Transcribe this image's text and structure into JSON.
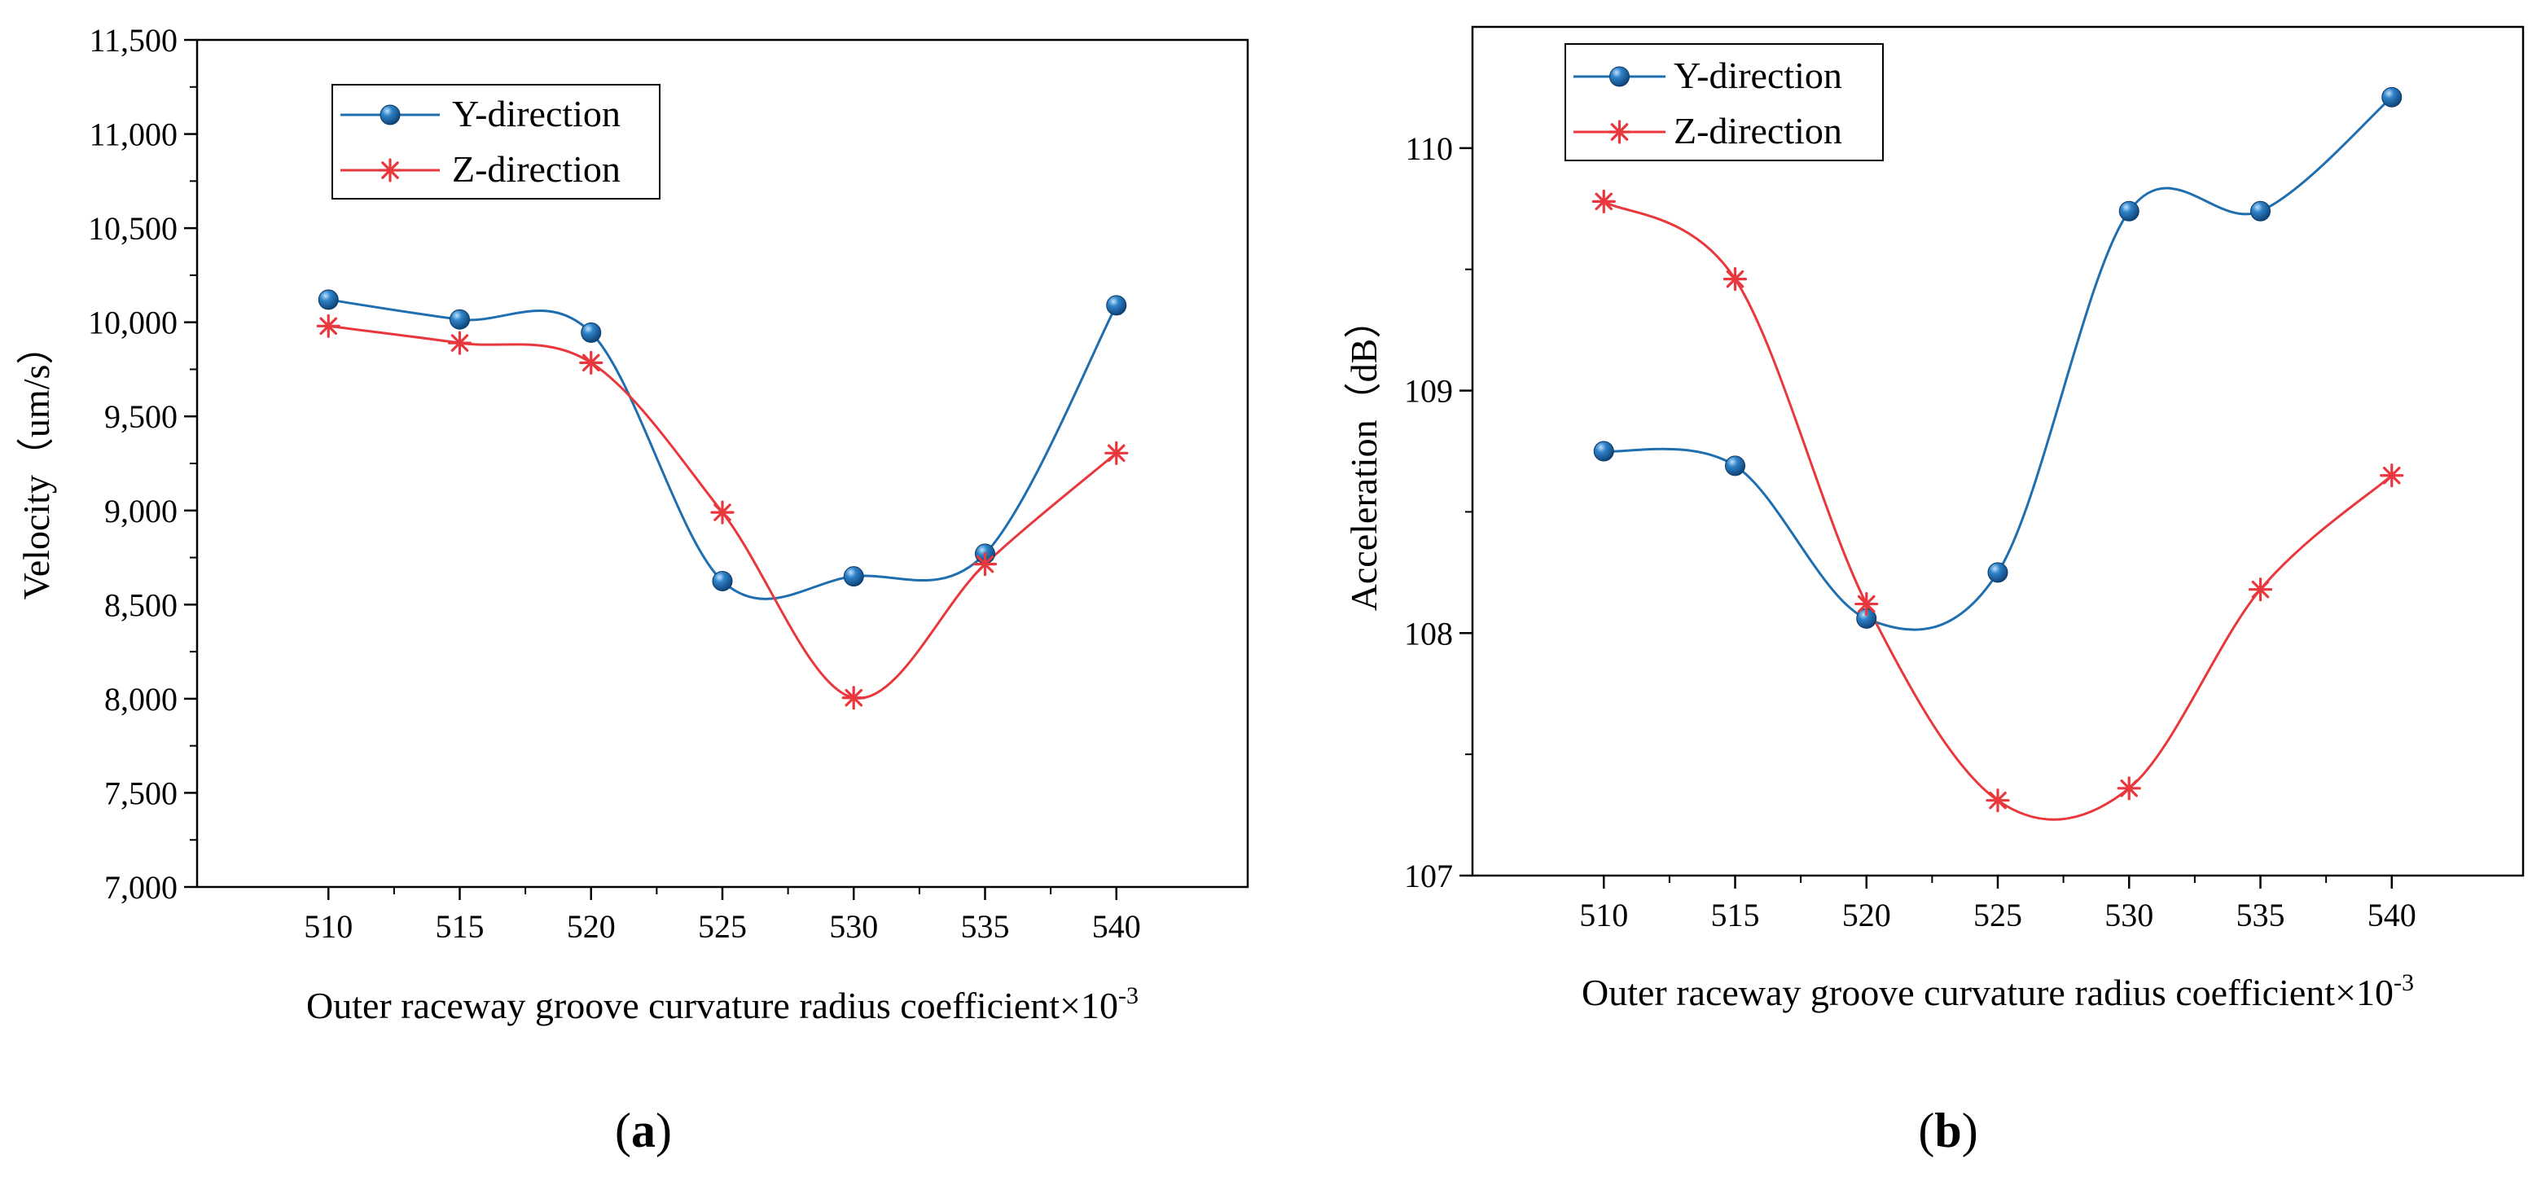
{
  "panels": [
    {
      "label_open": "(",
      "label_letter": "a",
      "label_close": ")"
    },
    {
      "label_open": "(",
      "label_letter": "b",
      "label_close": ")"
    }
  ],
  "chart_data": [
    {
      "type": "scatter",
      "title": "",
      "xlabel_main": "Outer raceway groove curvature radius coefficient×10",
      "xlabel_sup": "-3",
      "ylabel": "Velocity（um/s）",
      "x": [
        510,
        515,
        520,
        525,
        530,
        535,
        540
      ],
      "xlim": [
        505,
        545
      ],
      "ylim": [
        7000,
        11500
      ],
      "xticks": [
        510,
        515,
        520,
        525,
        530,
        535,
        540
      ],
      "yticks": [
        7000,
        7500,
        8000,
        8500,
        9000,
        9500,
        10000,
        10500,
        11000,
        11500
      ],
      "ytick_labels": [
        "7,000",
        "7,500",
        "8,000",
        "8,500",
        "9,000",
        "9,500",
        "10,000",
        "10,500",
        "11,000",
        "11,500"
      ],
      "legend_position": "top-left",
      "grid": false,
      "series": [
        {
          "name": "Y-direction",
          "marker": "sphere",
          "color": "#1f6fb0",
          "values": [
            10120,
            10015,
            9945,
            8625,
            8650,
            8770,
            10090
          ],
          "smoothed_curve": true
        },
        {
          "name": "Z-direction",
          "marker": "asterisk",
          "color": "#e8383d",
          "values": [
            9980,
            9890,
            9785,
            8990,
            8005,
            8715,
            9305
          ],
          "smoothed_curve": true
        }
      ]
    },
    {
      "type": "scatter",
      "title": "",
      "xlabel_main": "Outer raceway groove curvature radius coefficient×10",
      "xlabel_sup": "-3",
      "ylabel": "Acceleration（dB）",
      "x": [
        510,
        515,
        520,
        525,
        530,
        535,
        540
      ],
      "xlim": [
        505,
        545
      ],
      "ylim": [
        107,
        110.5
      ],
      "xticks": [
        510,
        515,
        520,
        525,
        530,
        535,
        540
      ],
      "yticks": [
        107,
        108,
        109,
        110
      ],
      "ytick_labels": [
        "107",
        "108",
        "109",
        "110"
      ],
      "legend_position": "top-left",
      "grid": false,
      "series": [
        {
          "name": "Y-direction",
          "marker": "sphere",
          "color": "#1f6fb0",
          "values": [
            108.75,
            108.69,
            108.06,
            108.25,
            109.74,
            109.74,
            110.21
          ],
          "smoothed_curve": true
        },
        {
          "name": "Z-direction",
          "marker": "asterisk",
          "color": "#e8383d",
          "values": [
            109.78,
            109.46,
            108.12,
            107.31,
            107.36,
            108.18,
            108.65
          ],
          "smoothed_curve": true
        }
      ]
    }
  ]
}
